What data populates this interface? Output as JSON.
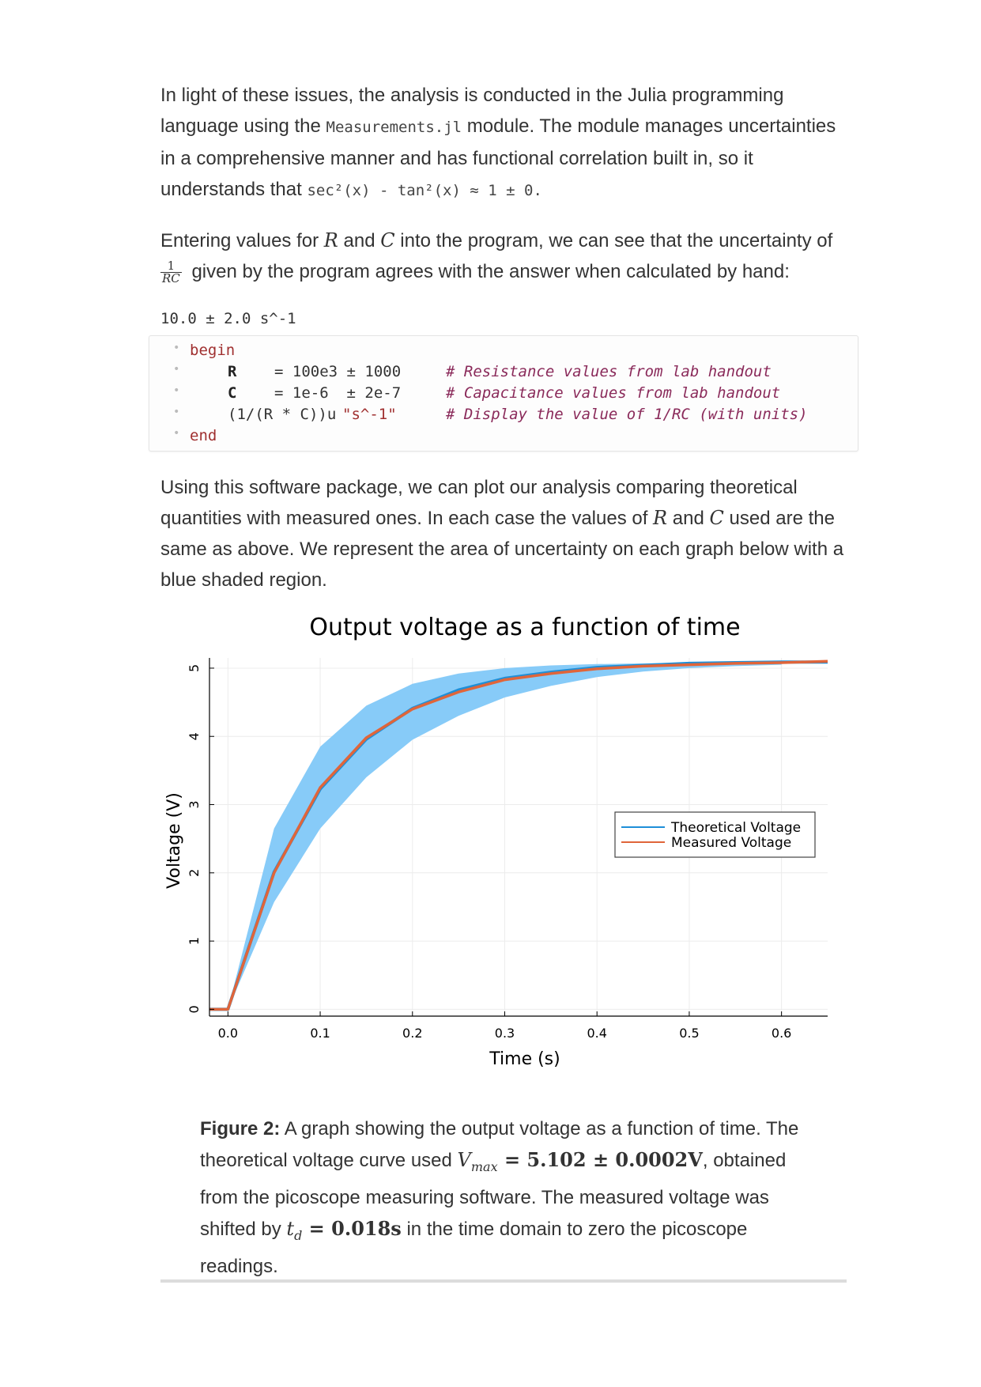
{
  "para1": {
    "t1": "In light of these issues, the analysis is conducted in the Julia programming language using the ",
    "code1": "Measurements.jl",
    "t2": " module. The module manages uncertainties in a comprehensive manner and has functional correlation built in, so it understands that ",
    "code2": "sec²(x) - tan²(x) ≈ 1 ± 0."
  },
  "para2": {
    "t1": "Entering values for ",
    "R": "R",
    "t2": " and ",
    "C": "C",
    "t3": " into the program, we can see that the uncertainty of",
    "frac_num": "1",
    "frac_den": "RC",
    "t4": " given by the program agrees with the answer when calculated by hand:"
  },
  "output": "10.0 ± 2.0 s^-1",
  "code": {
    "begin": "begin",
    "end": "end",
    "lines": [
      {
        "var": "R",
        "expr": "= 100e3 ± 1000",
        "comment": "# Resistance values from lab handout"
      },
      {
        "var": "C",
        "expr": "= 1e-6  ± 2e-7",
        "comment": "# Capacitance values from lab handout"
      },
      {
        "var": "(1/(R * C))u",
        "expr": "\"s^-1\"",
        "comment": "# Display the value of 1/RC (with units)"
      }
    ]
  },
  "para3": {
    "t1": "Using this software package, we can plot our analysis comparing theoretical quantities with measured ones. In each case the values of ",
    "R": "R",
    "t2": " and ",
    "C": "C",
    "t3": " used are the same as above. We represent the area of uncertainty on each graph below with a blue shaded region."
  },
  "chart_data": {
    "type": "line",
    "title": "Output voltage as a function of time",
    "xlabel": "Time (s)",
    "ylabel": "Voltage (V)",
    "xlim": [
      -0.02,
      0.65
    ],
    "ylim": [
      -0.1,
      5.15
    ],
    "xticks": [
      "0.0",
      "0.1",
      "0.2",
      "0.3",
      "0.4",
      "0.5",
      "0.6"
    ],
    "yticks": [
      "0",
      "1",
      "2",
      "3",
      "4",
      "5"
    ],
    "grid": true,
    "legend_position": "right",
    "series": [
      {
        "name": "Theoretical Voltage",
        "color": "#1e8fd8",
        "x": [
          -0.02,
          0.0,
          0.05,
          0.1,
          0.15,
          0.2,
          0.25,
          0.3,
          0.35,
          0.4,
          0.45,
          0.5,
          0.55,
          0.6,
          0.65
        ],
        "y": [
          0.0,
          0.0,
          2.01,
          3.23,
          3.96,
          4.41,
          4.68,
          4.85,
          4.94,
          5.01,
          5.04,
          5.07,
          5.08,
          5.09,
          5.09
        ]
      },
      {
        "name": "Measured Voltage",
        "color": "#e0653a",
        "x": [
          -0.02,
          0.0,
          0.05,
          0.1,
          0.15,
          0.2,
          0.25,
          0.3,
          0.35,
          0.4,
          0.45,
          0.5,
          0.55,
          0.6,
          0.65
        ],
        "y": [
          0.0,
          0.0,
          2.0,
          3.25,
          3.98,
          4.4,
          4.65,
          4.83,
          4.92,
          4.99,
          5.03,
          5.05,
          5.07,
          5.08,
          5.1
        ]
      }
    ],
    "uncertainty_band": {
      "color": "#87cbf8",
      "x": [
        0.0,
        0.05,
        0.1,
        0.15,
        0.2,
        0.25,
        0.3,
        0.35,
        0.4,
        0.45,
        0.5,
        0.55,
        0.6
      ],
      "upper": [
        0.0,
        2.65,
        3.85,
        4.45,
        4.77,
        4.92,
        5.0,
        5.04,
        5.06,
        5.07,
        5.08,
        5.08,
        5.08
      ],
      "lower": [
        0.0,
        1.57,
        2.65,
        3.4,
        3.95,
        4.3,
        4.57,
        4.74,
        4.87,
        4.95,
        5.0,
        5.03,
        5.05
      ]
    }
  },
  "caption": {
    "label": "Figure 2:",
    "t1": " A graph showing the output voltage as a function of time. The theoretical voltage curve used ",
    "vmax": "V",
    "vmax_sub": "max",
    "eq1": " = 5.102 ± 0.0002V",
    "t2": ", obtained from the picoscope measuring software. The measured voltage was shifted by ",
    "td": "t",
    "td_sub": "d",
    "eq2": " = 0.018s",
    "t3": " in the time domain to zero the picoscope readings."
  }
}
